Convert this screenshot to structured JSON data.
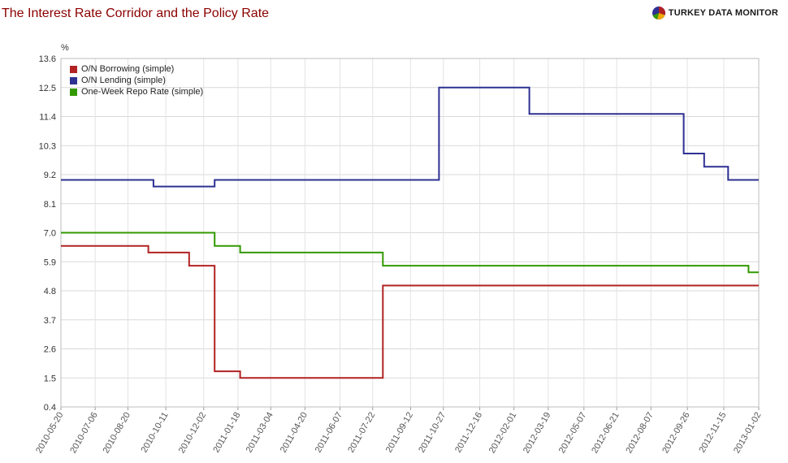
{
  "title": "The Interest Rate Corridor and the Policy Rate",
  "brand": {
    "text": "TURKEY DATA MONITOR"
  },
  "chart_data": {
    "type": "line",
    "title": "The Interest Rate Corridor and the Policy Rate",
    "ylabel": "%",
    "xlabel": "",
    "ylim": [
      0.4,
      13.6
    ],
    "yticks": [
      "13.6",
      "12.5",
      "11.4",
      "10.3",
      "9.2",
      "8.1",
      "7.0",
      "5.9",
      "4.8",
      "3.7",
      "2.6",
      "1.5",
      "0.4"
    ],
    "xticks": [
      "2010-05-20",
      "2010-07-06",
      "2010-08-20",
      "2010-10-11",
      "2010-12-02",
      "2011-01-18",
      "2011-03-04",
      "2011-04-20",
      "2011-06-07",
      "2011-07-22",
      "2011-09-12",
      "2011-10-27",
      "2011-12-16",
      "2012-02-01",
      "2012-03-19",
      "2012-05-07",
      "2012-06-21",
      "2012-08-07",
      "2012-09-26",
      "2012-11-15",
      "2013-01-02"
    ],
    "grid": true,
    "legend": "top-left",
    "series": [
      {
        "name": "O/N Borrowing (simple)",
        "color": "#b22222",
        "step": true,
        "points": [
          [
            "2010-05-20",
            6.5
          ],
          [
            "2010-09-17",
            6.25
          ],
          [
            "2010-11-12",
            5.75
          ],
          [
            "2010-12-17",
            1.75
          ],
          [
            "2011-01-21",
            1.5
          ],
          [
            "2011-08-05",
            5.0
          ],
          [
            "2013-01-02",
            5.0
          ]
        ]
      },
      {
        "name": "O/N Lending (simple)",
        "color": "#2e3192",
        "step": true,
        "points": [
          [
            "2010-05-20",
            9.0
          ],
          [
            "2010-09-24",
            8.75
          ],
          [
            "2010-12-17",
            9.0
          ],
          [
            "2011-10-21",
            12.5
          ],
          [
            "2012-02-22",
            11.5
          ],
          [
            "2012-09-21",
            10.0
          ],
          [
            "2012-10-19",
            9.5
          ],
          [
            "2012-11-21",
            9.0
          ],
          [
            "2013-01-02",
            9.0
          ]
        ]
      },
      {
        "name": "One-Week Repo Rate (simple)",
        "color": "#339900",
        "step": true,
        "points": [
          [
            "2010-05-20",
            7.0
          ],
          [
            "2010-12-17",
            6.5
          ],
          [
            "2011-01-21",
            6.25
          ],
          [
            "2011-08-05",
            5.75
          ],
          [
            "2012-12-19",
            5.5
          ],
          [
            "2013-01-02",
            5.5
          ]
        ]
      }
    ]
  }
}
